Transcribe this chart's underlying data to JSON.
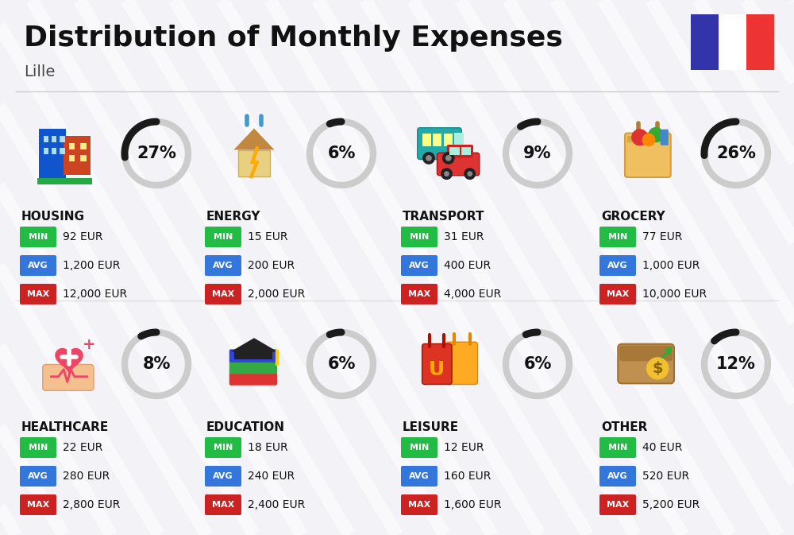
{
  "title": "Distribution of Monthly Expenses",
  "subtitle": "Lille",
  "bg_color": "#f2f2f7",
  "categories": [
    {
      "name": "HOUSING",
      "pct": 27,
      "min_val": "92 EUR",
      "avg_val": "1,200 EUR",
      "max_val": "12,000 EUR",
      "emoji": "🏢",
      "row": 0,
      "col": 0
    },
    {
      "name": "ENERGY",
      "pct": 6,
      "min_val": "15 EUR",
      "avg_val": "200 EUR",
      "max_val": "2,000 EUR",
      "emoji": "⚡",
      "row": 0,
      "col": 1
    },
    {
      "name": "TRANSPORT",
      "pct": 9,
      "min_val": "31 EUR",
      "avg_val": "400 EUR",
      "max_val": "4,000 EUR",
      "emoji": "🚌",
      "row": 0,
      "col": 2
    },
    {
      "name": "GROCERY",
      "pct": 26,
      "min_val": "77 EUR",
      "avg_val": "1,000 EUR",
      "max_val": "10,000 EUR",
      "emoji": "🛒",
      "row": 0,
      "col": 3
    },
    {
      "name": "HEALTHCARE",
      "pct": 8,
      "min_val": "22 EUR",
      "avg_val": "280 EUR",
      "max_val": "2,800 EUR",
      "emoji": "❤️",
      "row": 1,
      "col": 0
    },
    {
      "name": "EDUCATION",
      "pct": 6,
      "min_val": "18 EUR",
      "avg_val": "240 EUR",
      "max_val": "2,400 EUR",
      "emoji": "🎓",
      "row": 1,
      "col": 1
    },
    {
      "name": "LEISURE",
      "pct": 6,
      "min_val": "12 EUR",
      "avg_val": "160 EUR",
      "max_val": "1,600 EUR",
      "emoji": "🛍️",
      "row": 1,
      "col": 2
    },
    {
      "name": "OTHER",
      "pct": 12,
      "min_val": "40 EUR",
      "avg_val": "520 EUR",
      "max_val": "5,200 EUR",
      "emoji": "💰",
      "row": 1,
      "col": 3
    }
  ],
  "flag_blue": "#3333aa",
  "flag_white": "#ffffff",
  "flag_red": "#ee3333",
  "min_color": "#22bb44",
  "avg_color": "#3377dd",
  "max_color": "#cc2222",
  "text_color": "#111111",
  "arc_filled_color": "#1a1a1a",
  "arc_empty_color": "#cccccc",
  "stripe_color": "#e8e8ee",
  "divider_color": "#cccccc"
}
